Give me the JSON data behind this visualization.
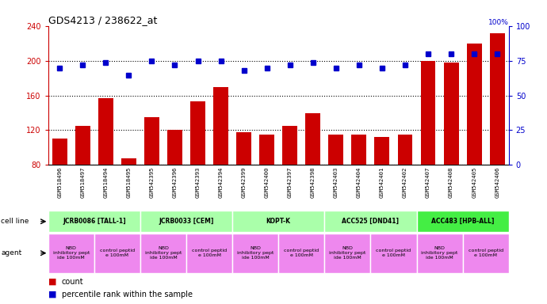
{
  "title": "GDS4213 / 238622_at",
  "samples": [
    "GSM518496",
    "GSM518497",
    "GSM518494",
    "GSM518495",
    "GSM542395",
    "GSM542396",
    "GSM542393",
    "GSM542394",
    "GSM542399",
    "GSM542400",
    "GSM542397",
    "GSM542398",
    "GSM542403",
    "GSM542404",
    "GSM542401",
    "GSM542402",
    "GSM542407",
    "GSM542408",
    "GSM542405",
    "GSM542406"
  ],
  "counts": [
    110,
    125,
    157,
    87,
    135,
    120,
    153,
    170,
    118,
    115,
    125,
    140,
    115,
    115,
    112,
    115,
    200,
    198,
    220,
    232
  ],
  "percentiles": [
    70,
    72,
    74,
    65,
    75,
    72,
    75,
    75,
    68,
    70,
    72,
    74,
    70,
    72,
    70,
    72,
    80,
    80,
    80,
    80
  ],
  "bar_color": "#cc0000",
  "dot_color": "#0000cc",
  "ylim_left": [
    80,
    240
  ],
  "ylim_right": [
    0,
    100
  ],
  "yticks_left": [
    80,
    120,
    160,
    200,
    240
  ],
  "yticks_right": [
    0,
    25,
    50,
    75,
    100
  ],
  "cell_lines": [
    {
      "label": "JCRB0086 [TALL-1]",
      "start": 0,
      "end": 4,
      "color": "#aaffaa"
    },
    {
      "label": "JCRB0033 [CEM]",
      "start": 4,
      "end": 8,
      "color": "#aaffaa"
    },
    {
      "label": "KOPT-K",
      "start": 8,
      "end": 12,
      "color": "#aaffaa"
    },
    {
      "label": "ACC525 [DND41]",
      "start": 12,
      "end": 16,
      "color": "#aaffaa"
    },
    {
      "label": "ACC483 [HPB-ALL]",
      "start": 16,
      "end": 20,
      "color": "#44ee44"
    }
  ],
  "agents": [
    {
      "label": "NBD\ninhibitory pept\nide 100mM",
      "start": 0,
      "end": 2,
      "color": "#ee88ee"
    },
    {
      "label": "control peptid\ne 100mM",
      "start": 2,
      "end": 4,
      "color": "#ee88ee"
    },
    {
      "label": "NBD\ninhibitory pept\nide 100mM",
      "start": 4,
      "end": 6,
      "color": "#ee88ee"
    },
    {
      "label": "control peptid\ne 100mM",
      "start": 6,
      "end": 8,
      "color": "#ee88ee"
    },
    {
      "label": "NBD\ninhibitory pept\nide 100mM",
      "start": 8,
      "end": 10,
      "color": "#ee88ee"
    },
    {
      "label": "control peptid\ne 100mM",
      "start": 10,
      "end": 12,
      "color": "#ee88ee"
    },
    {
      "label": "NBD\ninhibitory pept\nide 100mM",
      "start": 12,
      "end": 14,
      "color": "#ee88ee"
    },
    {
      "label": "control peptid\ne 100mM",
      "start": 14,
      "end": 16,
      "color": "#ee88ee"
    },
    {
      "label": "NBD\ninhibitory pept\nide 100mM",
      "start": 16,
      "end": 18,
      "color": "#ee88ee"
    },
    {
      "label": "control peptid\ne 100mM",
      "start": 18,
      "end": 20,
      "color": "#ee88ee"
    }
  ],
  "legend_count_color": "#cc0000",
  "legend_pct_color": "#0000cc",
  "sample_bg_color": "#c8c8c8",
  "plot_bg_color": "#ffffff"
}
